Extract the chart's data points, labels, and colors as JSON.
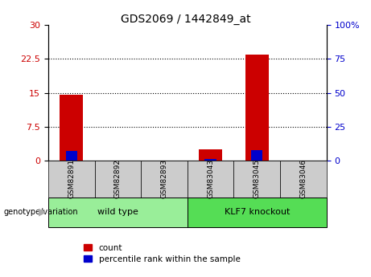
{
  "title": "GDS2069 / 1442849_at",
  "samples": [
    "GSM82891",
    "GSM82892",
    "GSM82893",
    "GSM83043",
    "GSM83045",
    "GSM83046"
  ],
  "count_values": [
    14.5,
    0,
    0,
    2.5,
    23.5,
    0
  ],
  "percentile_values": [
    7.0,
    0,
    0,
    1.0,
    7.5,
    0
  ],
  "groups": [
    {
      "label": "wild type",
      "indices": [
        0,
        1,
        2
      ],
      "color": "#90EE90"
    },
    {
      "label": "KLF7 knockout",
      "indices": [
        3,
        4,
        5
      ],
      "color": "#66DD66"
    }
  ],
  "ylim_left": [
    0,
    30
  ],
  "ylim_right": [
    0,
    100
  ],
  "yticks_left": [
    0,
    7.5,
    15,
    22.5,
    30
  ],
  "ytick_labels_left": [
    "0",
    "7.5",
    "15",
    "22.5",
    "30"
  ],
  "yticks_right": [
    0,
    25,
    50,
    75,
    100
  ],
  "ytick_labels_right": [
    "0",
    "25",
    "50",
    "75",
    "100%"
  ],
  "bar_color_count": "#cc0000",
  "bar_color_percentile": "#0000cc",
  "grid_color": "black",
  "sample_box_color": "#cccccc",
  "group_box_color_wt": "#99EE99",
  "group_box_color_ko": "#55DD55",
  "legend_count_label": "count",
  "legend_percentile_label": "percentile rank within the sample",
  "group_label_prefix": "genotype/variation"
}
